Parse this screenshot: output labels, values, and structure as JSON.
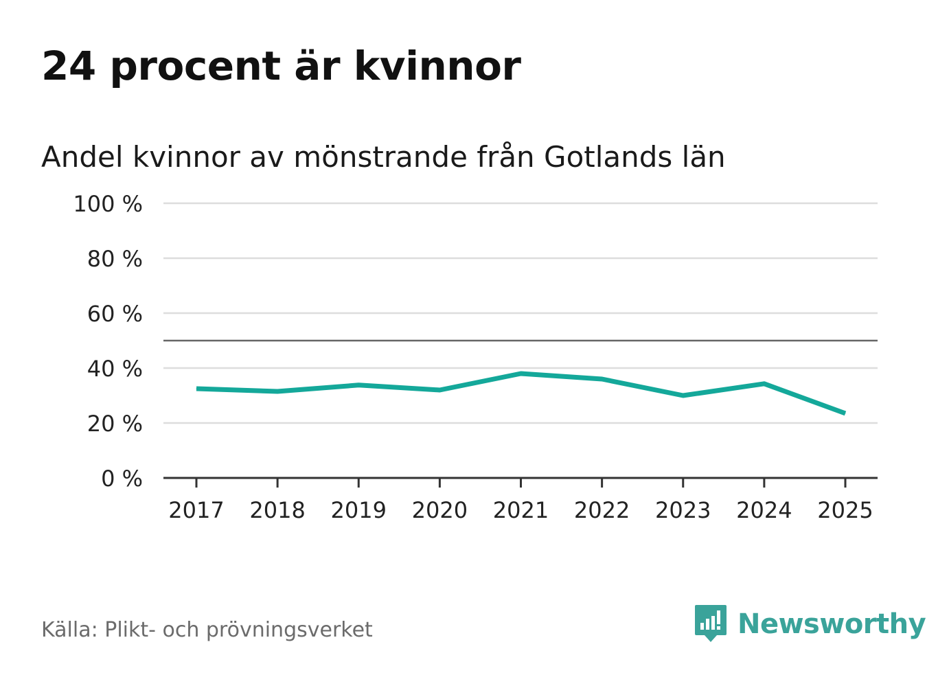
{
  "title": "24 procent är kvinnor",
  "chart_data": {
    "type": "line",
    "title": "24 procent är kvinnor",
    "subtitle": "Andel kvinnor av mönstrande från Gotlands län",
    "categories": [
      "2017",
      "2018",
      "2019",
      "2020",
      "2021",
      "2022",
      "2023",
      "2024",
      "2025"
    ],
    "series": [
      {
        "name": "Andel kvinnor",
        "values": [
          32.5,
          31.5,
          33.8,
          32.0,
          38.0,
          36.0,
          30.0,
          34.3,
          23.5
        ],
        "color": "#14a89a"
      }
    ],
    "reference_line": 50,
    "ylim": [
      0,
      100
    ],
    "yticks": [
      0,
      20,
      40,
      60,
      80,
      100
    ],
    "ytick_labels": [
      "0 %",
      "20 %",
      "40 %",
      "60 %",
      "80 %",
      "100 %"
    ],
    "xlabel": "",
    "ylabel": "",
    "grid": true
  },
  "footer": {
    "source": "Källa: Plikt- och prövningsverket",
    "brand": "Newsworthy"
  },
  "colors": {
    "line": "#14a89a",
    "brand": "#3aa39a",
    "grid": "#dddddd",
    "reference": "#666666",
    "axis": "#333333"
  }
}
